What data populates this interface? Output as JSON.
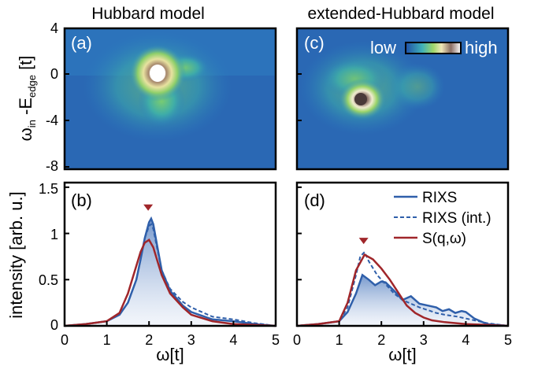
{
  "titles": {
    "left": "Hubbard model",
    "right": "extended-Hubbard model"
  },
  "panel_labels": {
    "a": "(a)",
    "b": "(b)",
    "c": "(c)",
    "d": "(d)"
  },
  "colorbar": {
    "low": "low",
    "high": "high"
  },
  "axes": {
    "top_ylabel_omega": "ω",
    "top_ylabel_in": "in",
    "top_ylabel_minus_E": " -E",
    "top_ylabel_edge": "edge",
    "top_ylabel_unit": " [t]",
    "bottom_ylabel": "intensity [arb. u.]",
    "xlabel_left": "ω[t]",
    "xlabel_right": "ω[t]",
    "top_yticks": [
      "4",
      "0",
      "-4",
      "-8"
    ],
    "bottom_yticks": [
      "1.5",
      "1",
      "0.5",
      "0"
    ],
    "xticks": [
      "0",
      "1",
      "2",
      "3",
      "4",
      "5"
    ]
  },
  "legend": {
    "rixs": "RIXS",
    "rixs_int": "RIXS (int.)",
    "sqw": "S(q,ω)"
  },
  "colors": {
    "rixs": "#2f5faa",
    "rixs_fill": "#7f9fd6",
    "sqw": "#a0262a",
    "marker": "#a0262a"
  },
  "chart_data": [
    {
      "panel": "a",
      "type": "heatmap",
      "title": "Hubbard model",
      "xlim": [
        0,
        5
      ],
      "ylim": [
        -8,
        4
      ],
      "ylabel": "ω_in - E_edge [t]",
      "hotspots": [
        {
          "x": 2.05,
          "y": 0.3,
          "rel": 1.0
        },
        {
          "x": 2.05,
          "y": -2.6,
          "rel": 0.35
        },
        {
          "x": 2.6,
          "y": 1.0,
          "rel": 0.25
        }
      ]
    },
    {
      "panel": "c",
      "type": "heatmap",
      "title": "extended-Hubbard model",
      "xlim": [
        0,
        5
      ],
      "ylim": [
        -8,
        4
      ],
      "hotspots": [
        {
          "x": 1.65,
          "y": -2.2,
          "rel": 1.0
        },
        {
          "x": 1.2,
          "y": -0.5,
          "rel": 0.3
        },
        {
          "x": 2.8,
          "y": -1.5,
          "rel": 0.2
        }
      ]
    },
    {
      "panel": "b",
      "type": "line",
      "xlabel": "ω[t]",
      "ylabel": "intensity [arb. u.]",
      "xlim": [
        0,
        5
      ],
      "ylim": [
        0,
        1.55
      ],
      "marker_x": 1.98,
      "series": [
        {
          "key": "rixs",
          "x": [
            0,
            0.5,
            1,
            1.3,
            1.5,
            1.7,
            1.8,
            1.9,
            2.0,
            2.05,
            2.1,
            2.2,
            2.3,
            2.5,
            2.8,
            3.0,
            3.5,
            4.0,
            4.5,
            5.0
          ],
          "y": [
            0.0,
            0.02,
            0.05,
            0.12,
            0.25,
            0.5,
            0.72,
            0.95,
            1.12,
            1.16,
            1.1,
            0.85,
            0.6,
            0.38,
            0.22,
            0.15,
            0.07,
            0.05,
            0.02,
            0.0
          ]
        },
        {
          "key": "rixs_int",
          "x": [
            0,
            0.5,
            1,
            1.3,
            1.5,
            1.7,
            1.8,
            1.9,
            2.0,
            2.05,
            2.1,
            2.2,
            2.3,
            2.5,
            2.8,
            3.0,
            3.5,
            4.0,
            4.5,
            5.0
          ],
          "y": [
            0.0,
            0.02,
            0.05,
            0.12,
            0.25,
            0.5,
            0.72,
            0.95,
            1.08,
            1.1,
            1.05,
            0.82,
            0.6,
            0.4,
            0.26,
            0.2,
            0.1,
            0.07,
            0.03,
            0.0
          ]
        },
        {
          "key": "sqw",
          "x": [
            0,
            0.5,
            1,
            1.3,
            1.5,
            1.7,
            1.8,
            1.9,
            2.0,
            2.1,
            2.2,
            2.3,
            2.5,
            2.8,
            3.0,
            3.5,
            4.0,
            4.5,
            5.0
          ],
          "y": [
            0.0,
            0.02,
            0.05,
            0.14,
            0.35,
            0.65,
            0.8,
            0.9,
            0.93,
            0.85,
            0.7,
            0.55,
            0.35,
            0.2,
            0.12,
            0.05,
            0.02,
            0.01,
            0.0
          ]
        }
      ]
    },
    {
      "panel": "d",
      "type": "line",
      "xlabel": "ω[t]",
      "xlim": [
        0,
        5
      ],
      "ylim": [
        0,
        1.55
      ],
      "marker_x": 1.58,
      "series": [
        {
          "key": "rixs",
          "x": [
            0,
            0.5,
            1,
            1.2,
            1.4,
            1.55,
            1.7,
            1.85,
            2.0,
            2.1,
            2.3,
            2.5,
            2.7,
            2.9,
            3.1,
            3.3,
            3.45,
            3.6,
            3.75,
            3.9,
            4.0,
            4.2,
            4.5,
            5.0
          ],
          "y": [
            0.0,
            0.02,
            0.05,
            0.15,
            0.35,
            0.55,
            0.5,
            0.44,
            0.48,
            0.47,
            0.38,
            0.28,
            0.32,
            0.24,
            0.22,
            0.2,
            0.16,
            0.18,
            0.14,
            0.16,
            0.15,
            0.08,
            0.02,
            0.0
          ]
        },
        {
          "key": "rixs_int",
          "x": [
            0,
            0.5,
            1,
            1.2,
            1.4,
            1.5,
            1.6,
            1.7,
            1.9,
            2.1,
            2.3,
            2.5,
            2.7,
            2.9,
            3.1,
            3.3,
            3.5,
            3.8,
            4.0,
            4.5,
            5.0
          ],
          "y": [
            0.0,
            0.02,
            0.05,
            0.2,
            0.55,
            0.75,
            0.8,
            0.7,
            0.55,
            0.45,
            0.35,
            0.28,
            0.24,
            0.2,
            0.17,
            0.14,
            0.12,
            0.1,
            0.08,
            0.03,
            0.0
          ]
        },
        {
          "key": "sqw",
          "x": [
            0,
            0.5,
            1,
            1.2,
            1.4,
            1.6,
            1.8,
            2.0,
            2.2,
            2.4,
            2.6,
            2.8,
            3.0,
            3.2,
            3.5,
            4.0,
            4.5,
            5.0
          ],
          "y": [
            0.0,
            0.02,
            0.05,
            0.25,
            0.6,
            0.77,
            0.72,
            0.62,
            0.5,
            0.36,
            0.22,
            0.14,
            0.09,
            0.06,
            0.04,
            0.02,
            0.01,
            0.0
          ]
        }
      ]
    }
  ]
}
